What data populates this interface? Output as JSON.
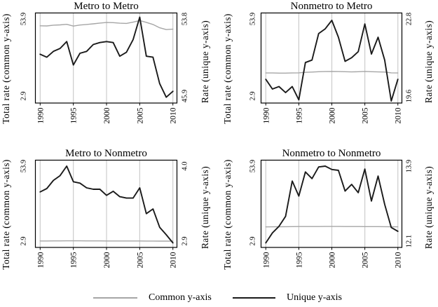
{
  "style": {
    "background": "#ffffff",
    "frame_color": "#000000",
    "gridline_color": "#cccccc",
    "common_color": "#a6a6a6",
    "unique_color": "#1a1a1a"
  },
  "legend": {
    "items": [
      {
        "key": "common",
        "label": "Common y-axis",
        "color": "#a6a6a6"
      },
      {
        "key": "unique",
        "label": "Unique y-axis",
        "color": "#1a1a1a"
      }
    ]
  },
  "chart_data": [
    {
      "type": "line",
      "title": "Metro to Metro",
      "x": [
        1990,
        1991,
        1992,
        1993,
        1994,
        1995,
        1996,
        1997,
        1998,
        1999,
        2000,
        2001,
        2002,
        2003,
        2004,
        2005,
        2006,
        2007,
        2008,
        2009,
        2010
      ],
      "xlim": [
        1990,
        2010
      ],
      "xticks": [
        "1990",
        "1995",
        "2000",
        "2005",
        "2010"
      ],
      "grid": "vertical",
      "left_axis": {
        "label": "Total rate (common y-axis)",
        "lim": [
          2.9,
          53.9
        ],
        "ticks": [
          "53.9",
          "2.9"
        ]
      },
      "right_axis": {
        "label": "Rate (unique y-axis)",
        "lim": [
          45.9,
          53.8
        ],
        "ticks": [
          "53.8",
          "45.9"
        ]
      },
      "series": [
        {
          "key": "common",
          "name": "Common y-axis",
          "axis": "left",
          "color": "#a6a6a6",
          "width": 1.4,
          "values": [
            49.5,
            49.4,
            49.9,
            50.1,
            50.5,
            49.3,
            50.0,
            50.4,
            50.8,
            51.3,
            51.7,
            51.6,
            51.2,
            51.1,
            51.9,
            53.0,
            51.8,
            50.4,
            48.2,
            47.0,
            47.3
          ]
        },
        {
          "key": "unique",
          "name": "Unique y-axis",
          "axis": "right",
          "color": "#1a1a1a",
          "width": 1.9,
          "values": [
            50.2,
            49.9,
            50.5,
            50.8,
            51.5,
            49.1,
            50.3,
            50.5,
            51.2,
            51.4,
            51.5,
            51.4,
            50.0,
            50.4,
            51.7,
            54.0,
            50.0,
            49.9,
            47.2,
            45.8,
            46.4
          ]
        }
      ]
    },
    {
      "type": "line",
      "title": "Nonmetro to Metro",
      "x": [
        1990,
        1991,
        1992,
        1993,
        1994,
        1995,
        1996,
        1997,
        1998,
        1999,
        2000,
        2001,
        2002,
        2003,
        2004,
        2005,
        2006,
        2007,
        2008,
        2009,
        2010
      ],
      "xlim": [
        1990,
        2010
      ],
      "xticks": [
        "1990",
        "1995",
        "2000",
        "2005",
        "2010"
      ],
      "grid": "vertical",
      "left_axis": {
        "label": "Total rate (common y-axis)",
        "lim": [
          2.9,
          53.9
        ],
        "ticks": [
          "53.9",
          "2.9"
        ]
      },
      "right_axis": {
        "label": "Rate (unique y-axis)",
        "lim": [
          19.6,
          22.8
        ],
        "ticks": [
          "22.8",
          "19.6"
        ]
      },
      "series": [
        {
          "key": "common",
          "name": "Common y-axis",
          "axis": "left",
          "color": "#a6a6a6",
          "width": 1.4,
          "values": [
            18.3,
            18.3,
            18.2,
            18.2,
            18.3,
            18.4,
            18.7,
            18.9,
            19.1,
            19.2,
            19.3,
            19.2,
            19.1,
            19.0,
            19.1,
            19.3,
            19.1,
            19.0,
            18.9,
            18.4,
            18.3
          ]
        },
        {
          "key": "unique",
          "name": "Unique y-axis",
          "axis": "right",
          "color": "#1a1a1a",
          "width": 1.9,
          "values": [
            20.3,
            19.9,
            20.0,
            19.75,
            20.0,
            19.45,
            21.0,
            21.1,
            22.2,
            22.4,
            22.75,
            22.05,
            21.05,
            21.2,
            21.45,
            22.6,
            21.35,
            22.05,
            21.1,
            19.4,
            20.3
          ]
        }
      ]
    },
    {
      "type": "line",
      "title": "Metro to Nonmetro",
      "x": [
        1990,
        1991,
        1992,
        1993,
        1994,
        1995,
        1996,
        1997,
        1998,
        1999,
        2000,
        2001,
        2002,
        2003,
        2004,
        2005,
        2006,
        2007,
        2008,
        2009,
        2010
      ],
      "xlim": [
        1990,
        2010
      ],
      "xticks": [
        "1990",
        "1995",
        "2000",
        "2005",
        "2010"
      ],
      "grid": "vertical",
      "left_axis": {
        "label": "Total rate (common y-axis)",
        "lim": [
          2.9,
          53.9
        ],
        "ticks": [
          "53.9",
          "2.9"
        ]
      },
      "right_axis": {
        "label": "Rate (unique y-axis)",
        "lim": [
          2.9,
          4.0
        ],
        "ticks": [
          "4.0",
          "2.9"
        ]
      },
      "series": [
        {
          "key": "common",
          "name": "Common y-axis",
          "axis": "left",
          "color": "#a6a6a6",
          "width": 1.4,
          "values": [
            2.8,
            2.8,
            2.85,
            2.85,
            2.9,
            2.9,
            2.9,
            2.85,
            2.85,
            2.85,
            2.8,
            2.8,
            2.8,
            2.8,
            2.8,
            2.8,
            2.75,
            2.75,
            2.7,
            2.7,
            2.7
          ]
        },
        {
          "key": "unique",
          "name": "Unique y-axis",
          "axis": "right",
          "color": "#1a1a1a",
          "width": 1.9,
          "values": [
            3.62,
            3.67,
            3.79,
            3.86,
            4.0,
            3.77,
            3.75,
            3.68,
            3.66,
            3.66,
            3.57,
            3.63,
            3.55,
            3.53,
            3.53,
            3.68,
            3.3,
            3.37,
            3.1,
            2.99,
            2.87
          ]
        }
      ]
    },
    {
      "type": "line",
      "title": "Nonmetro to Nonmetro",
      "x": [
        1990,
        1991,
        1992,
        1993,
        1994,
        1995,
        1996,
        1997,
        1998,
        1999,
        2000,
        2001,
        2002,
        2003,
        2004,
        2005,
        2006,
        2007,
        2008,
        2009,
        2010
      ],
      "xlim": [
        1990,
        2010
      ],
      "xticks": [
        "1990",
        "1995",
        "2000",
        "2005",
        "2010"
      ],
      "grid": "vertical",
      "left_axis": {
        "label": "Total rate (common y-axis)",
        "lim": [
          2.9,
          53.9
        ],
        "ticks": [
          "53.9",
          "2.9"
        ]
      },
      "right_axis": {
        "label": "Rate (unique y-axis)",
        "lim": [
          12.1,
          13.9
        ],
        "ticks": [
          "13.9",
          "12.1"
        ]
      },
      "series": [
        {
          "key": "common",
          "name": "Common y-axis",
          "axis": "left",
          "color": "#a6a6a6",
          "width": 1.4,
          "values": [
            12.4,
            12.45,
            12.5,
            12.55,
            12.6,
            12.65,
            12.65,
            12.65,
            12.65,
            12.7,
            12.7,
            12.7,
            12.65,
            12.65,
            12.65,
            12.6,
            12.6,
            12.6,
            12.55,
            12.5,
            12.45
          ]
        },
        {
          "key": "unique",
          "name": "Unique y-axis",
          "axis": "right",
          "color": "#1a1a1a",
          "width": 1.9,
          "values": [
            12.05,
            12.29,
            12.45,
            12.69,
            13.54,
            13.18,
            13.76,
            13.6,
            13.88,
            13.9,
            13.82,
            13.8,
            13.3,
            13.46,
            13.26,
            13.83,
            13.06,
            13.66,
            12.98,
            12.42,
            12.33
          ]
        }
      ]
    }
  ]
}
